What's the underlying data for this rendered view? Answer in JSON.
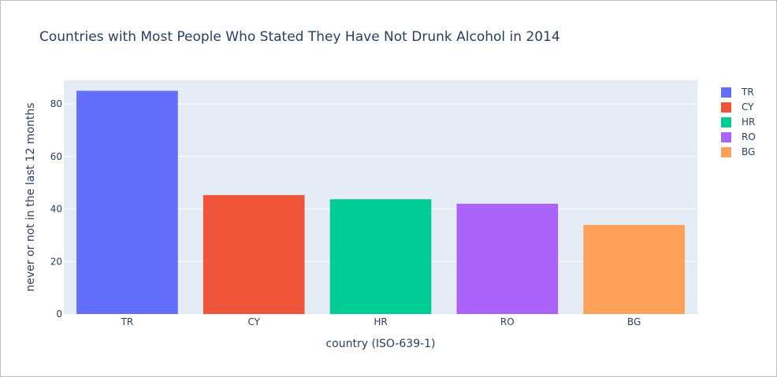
{
  "chart_data": {
    "type": "bar",
    "title": "Countries with Most People Who Stated They Have Not Drunk Alcohol in 2014",
    "xlabel": "country (ISO-639-1)",
    "ylabel": "never or not in the last 12 months",
    "categories": [
      "TR",
      "CY",
      "HR",
      "RO",
      "BG"
    ],
    "values": [
      85,
      45.3,
      43.7,
      42,
      33.9
    ],
    "colors": [
      "#636efa",
      "#EF553B",
      "#00cc96",
      "#ab63fa",
      "#FFA15A"
    ],
    "ylim": [
      0,
      89
    ],
    "yticks": [
      0,
      20,
      40,
      60,
      80
    ],
    "grid": true,
    "legend": {
      "placement": "top-right",
      "entries": [
        "TR",
        "CY",
        "HR",
        "RO",
        "BG"
      ]
    },
    "plot_bgcolor": "#e5ecf6"
  }
}
